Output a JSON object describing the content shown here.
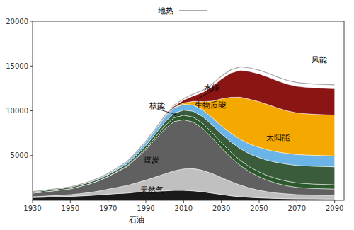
{
  "chart_data": {
    "type": "area",
    "stacked": true,
    "x": [
      1930,
      1935,
      1940,
      1945,
      1950,
      1955,
      1960,
      1965,
      1970,
      1975,
      1980,
      1985,
      1990,
      1995,
      2000,
      2005,
      2010,
      2015,
      2020,
      2025,
      2030,
      2035,
      2040,
      2045,
      2050,
      2055,
      2060,
      2065,
      2070,
      2075,
      2080,
      2085,
      2090
    ],
    "series": [
      {
        "name": "石油",
        "color": "#1a1a1a",
        "values": [
          300,
          330,
          370,
          400,
          430,
          480,
          530,
          600,
          680,
          750,
          800,
          900,
          950,
          1000,
          1050,
          1100,
          1100,
          1050,
          950,
          800,
          650,
          500,
          400,
          320,
          270,
          230,
          200,
          180,
          160,
          155,
          150,
          148,
          145
        ]
      },
      {
        "name": "天然气",
        "color": "#c0c0c0",
        "values": [
          100,
          120,
          140,
          170,
          200,
          260,
          330,
          430,
          560,
          700,
          850,
          1050,
          1300,
          1600,
          1900,
          2200,
          2400,
          2500,
          2400,
          2200,
          1900,
          1600,
          1300,
          1050,
          850,
          700,
          600,
          530,
          480,
          450,
          430,
          420,
          410
        ]
      },
      {
        "name": "煤炭",
        "color": "#606060",
        "values": [
          400,
          450,
          520,
          580,
          650,
          800,
          950,
          1150,
          1400,
          1750,
          2100,
          2700,
          3400,
          4200,
          5000,
          5500,
          5500,
          5200,
          4700,
          4000,
          3300,
          2700,
          2200,
          1800,
          1500,
          1250,
          1050,
          900,
          800,
          760,
          730,
          715,
          700
        ]
      },
      {
        "name": "核能",
        "color": "#2d5a2d",
        "values": [
          0,
          0,
          0,
          0,
          0,
          0,
          5,
          10,
          20,
          40,
          70,
          120,
          180,
          250,
          350,
          430,
          500,
          550,
          570,
          580,
          580,
          575,
          565,
          555,
          545,
          535,
          525,
          515,
          505,
          498,
          492,
          486,
          480
        ]
      },
      {
        "name": "生物质能",
        "color": "#3a5c3a",
        "values": [
          150,
          155,
          160,
          165,
          170,
          175,
          180,
          185,
          195,
          210,
          230,
          260,
          300,
          360,
          430,
          500,
          570,
          650,
          750,
          870,
          1000,
          1150,
          1300,
          1450,
          1600,
          1720,
          1820,
          1900,
          1950,
          1975,
          1990,
          1998,
          2000
        ]
      },
      {
        "name": "水能",
        "color": "#6ab4e8",
        "values": [
          10,
          12,
          15,
          20,
          28,
          38,
          55,
          80,
          115,
          160,
          220,
          290,
          370,
          450,
          540,
          600,
          650,
          700,
          750,
          820,
          900,
          980,
          1050,
          1100,
          1150,
          1180,
          1200,
          1210,
          1220,
          1225,
          1228,
          1230,
          1230
        ]
      },
      {
        "name": "太阳能",
        "color": "#f5a800",
        "values": [
          0,
          0,
          0,
          0,
          0,
          0,
          0,
          0,
          0,
          0,
          0,
          2,
          5,
          10,
          20,
          50,
          150,
          400,
          900,
          1800,
          3000,
          4000,
          4700,
          5000,
          5100,
          5050,
          4900,
          4750,
          4650,
          4600,
          4580,
          4560,
          4550
        ]
      },
      {
        "name": "风能",
        "color": "#8b1515",
        "values": [
          0,
          0,
          0,
          0,
          0,
          0,
          0,
          0,
          0,
          0,
          2,
          5,
          10,
          20,
          50,
          120,
          300,
          600,
          1000,
          1600,
          2200,
          2700,
          3000,
          3100,
          3100,
          3080,
          3020,
          2980,
          2960,
          2950,
          2945,
          2942,
          2940
        ]
      },
      {
        "name": "地热",
        "color": "#a8a8a8",
        "type": "line",
        "values": [
          15,
          16,
          17,
          18,
          20,
          22,
          25,
          28,
          32,
          38,
          45,
          55,
          70,
          90,
          115,
          145,
          180,
          220,
          260,
          300,
          340,
          370,
          395,
          410,
          420,
          425,
          428,
          430,
          432,
          433,
          434,
          435,
          436
        ]
      }
    ],
    "annotations": [
      {
        "text": "石油",
        "x": 1985,
        "y": -650
      },
      {
        "text": "天然气",
        "x": 1993,
        "y": 1200
      },
      {
        "text": "煤炭",
        "x": 1993,
        "y": 4500
      },
      {
        "text": "核能",
        "x": 1996,
        "y": 10600,
        "arrow_x": 2008,
        "arrow_y": 9450
      },
      {
        "text": "生物质能",
        "x": 2024,
        "y": 10700
      },
      {
        "text": "水能",
        "x": 2025,
        "y": 12600,
        "arrow_x": 2017,
        "arrow_y": 11300
      },
      {
        "text": "太阳能",
        "x": 2060,
        "y": 7000
      },
      {
        "text": "风能",
        "x": 2082,
        "y": 15700
      }
    ],
    "xlim": [
      1930,
      2095
    ],
    "ylim": [
      0,
      20000
    ],
    "xticks": [
      1930,
      1950,
      1970,
      1990,
      2010,
      2030,
      2050,
      2070,
      2090
    ],
    "yticks": [
      5000,
      10000,
      15000,
      20000
    ],
    "grid": false,
    "legend": "top"
  }
}
